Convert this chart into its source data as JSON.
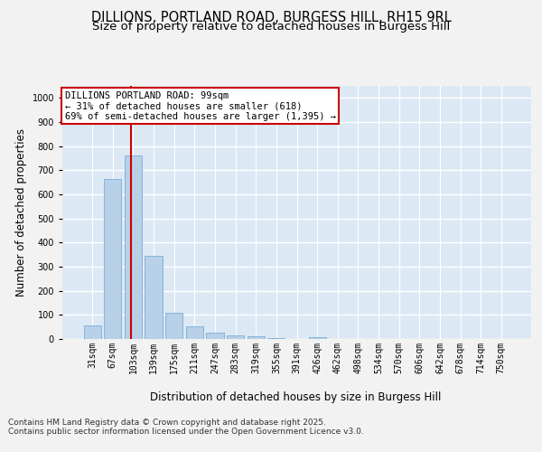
{
  "title_line1": "DILLIONS, PORTLAND ROAD, BURGESS HILL, RH15 9RL",
  "title_line2": "Size of property relative to detached houses in Burgess Hill",
  "xlabel": "Distribution of detached houses by size in Burgess Hill",
  "ylabel": "Number of detached properties",
  "categories": [
    "31sqm",
    "67sqm",
    "103sqm",
    "139sqm",
    "175sqm",
    "211sqm",
    "247sqm",
    "283sqm",
    "319sqm",
    "355sqm",
    "391sqm",
    "426sqm",
    "462sqm",
    "498sqm",
    "534sqm",
    "570sqm",
    "606sqm",
    "642sqm",
    "678sqm",
    "714sqm",
    "750sqm"
  ],
  "values": [
    55,
    665,
    760,
    345,
    110,
    52,
    25,
    15,
    10,
    5,
    0,
    8,
    0,
    0,
    0,
    0,
    0,
    0,
    0,
    0,
    0
  ],
  "bar_color": "#b8d0e8",
  "bar_edge_color": "#7aadd4",
  "vline_color": "#cc0000",
  "annotation_text": "DILLIONS PORTLAND ROAD: 99sqm\n← 31% of detached houses are smaller (618)\n69% of semi-detached houses are larger (1,395) →",
  "annotation_box_color": "#cc0000",
  "ylim": [
    0,
    1050
  ],
  "yticks": [
    0,
    100,
    200,
    300,
    400,
    500,
    600,
    700,
    800,
    900,
    1000
  ],
  "background_color": "#dce9f5",
  "grid_color": "#ffffff",
  "fig_background": "#f2f2f2",
  "footer_text": "Contains HM Land Registry data © Crown copyright and database right 2025.\nContains public sector information licensed under the Open Government Licence v3.0.",
  "title_fontsize": 10.5,
  "subtitle_fontsize": 9.5,
  "axis_label_fontsize": 8.5,
  "tick_fontsize": 7,
  "footer_fontsize": 6.5,
  "annotation_fontsize": 7.5
}
